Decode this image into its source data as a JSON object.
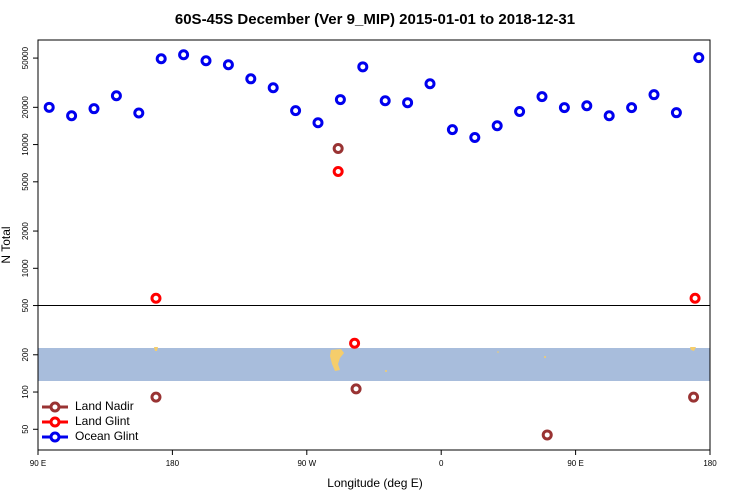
{
  "chart_data": {
    "type": "scatter",
    "title": "60S-45S December (Ver 9_MIP)   2015-01-01 to 2018-12-31",
    "xlabel": "Longitude (deg E)",
    "ylabel": "N Total",
    "ylog": true,
    "legend": "lower left",
    "xlim": [
      90,
      540
    ],
    "ylim": [
      34,
      70000
    ],
    "xticks": [
      {
        "value": 90,
        "label": "90 E"
      },
      180,
      {
        "value": 270,
        "label": "90 W"
      },
      {
        "value": 360,
        "label": "0"
      },
      {
        "value": 450,
        "label": "90 E"
      },
      {
        "value": 540,
        "label": "180"
      }
    ],
    "yticks": [
      50,
      100,
      200,
      500,
      1000,
      2000,
      5000,
      10000,
      20000,
      50000
    ],
    "hlines": [
      500
    ],
    "series": [
      {
        "name": "Land Nadir",
        "color": "#993333",
        "x": [
          169,
          291,
          303,
          431,
          529
        ],
        "values": [
          91,
          9290,
          106,
          45,
          91
        ]
      },
      {
        "name": "Land Glint",
        "color": "#ff0000",
        "x": [
          169,
          291,
          302,
          530
        ],
        "values": [
          573,
          6060,
          248,
          573
        ]
      },
      {
        "name": "Ocean Glint",
        "color": "#0000ee",
        "x": [
          97.5,
          112.5,
          127.5,
          142.5,
          157.5,
          172.5,
          187.5,
          202.5,
          217.5,
          232.5,
          247.5,
          262.5,
          277.5,
          292.5,
          307.5,
          322.5,
          337.5,
          352.5,
          367.5,
          382.5,
          397.5,
          412.5,
          427.5,
          442.5,
          457.5,
          472.5,
          487.5,
          502.5,
          517.5,
          532.5
        ],
        "values": [
          20000,
          17100,
          19500,
          24800,
          18000,
          49400,
          53200,
          47600,
          44200,
          34000,
          28800,
          18800,
          15000,
          23100,
          42500,
          22600,
          21800,
          31000,
          13200,
          11400,
          14200,
          18500,
          24400,
          19900,
          20600,
          17100,
          19900,
          25300,
          18100,
          50400
        ]
      }
    ]
  }
}
